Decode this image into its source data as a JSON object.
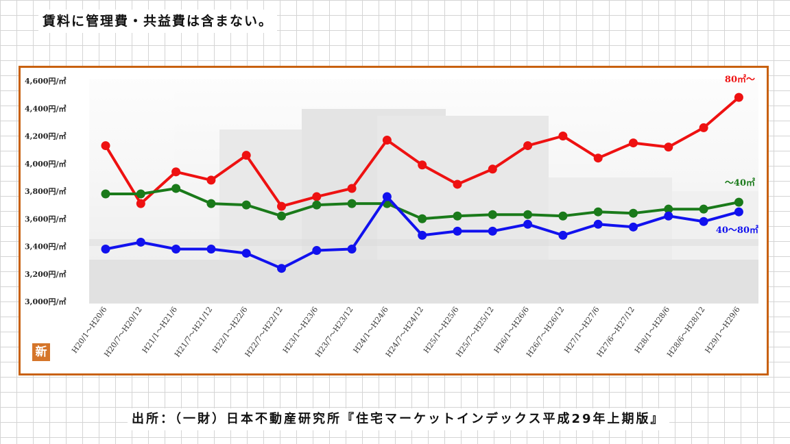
{
  "note": "賃料に管理費・共益費は含まない。",
  "source": "出所：（一財）日本不動産研究所『住宅マーケットインデックス平成29年上期版』",
  "badge": "新",
  "chart_data": {
    "type": "line",
    "categories": [
      "H20/1～H20/6",
      "H20/7～H20/12",
      "H21/1～H21/6",
      "H21/7～H21/12",
      "H22/1～H22/6",
      "H22/7～H22/12",
      "H23/1～H23/6",
      "H23/7～H23/12",
      "H24/1～H24/6",
      "H24/7～H24/12",
      "H25/1～H25/6",
      "H25/7～H25/12",
      "H26/1～H26/6",
      "H26/7～H26/12",
      "H27/1～H27/6",
      "H27/6～H27/12",
      "H28/1～H28/6",
      "H28/6～H28/12",
      "H29/1～H29/6"
    ],
    "ylim": [
      3000,
      4600
    ],
    "yticks": [
      3000,
      3200,
      3400,
      3600,
      3800,
      4000,
      4200,
      4400,
      4600
    ],
    "yunit": "円/㎡",
    "series": [
      {
        "name": "80㎡～",
        "color": "#ee1111",
        "values": [
          4130,
          3710,
          3940,
          3880,
          4060,
          3690,
          3760,
          3820,
          4170,
          3990,
          3850,
          3960,
          4130,
          4200,
          4040,
          4150,
          4120,
          4260,
          4480
        ]
      },
      {
        "name": "～40㎡",
        "color": "#1a7a1a",
        "values": [
          3780,
          3780,
          3820,
          3710,
          3700,
          3620,
          3700,
          3710,
          3710,
          3600,
          3620,
          3630,
          3630,
          3620,
          3650,
          3640,
          3670,
          3670,
          3720
        ]
      },
      {
        "name": "40～80㎡",
        "color": "#1111ee",
        "values": [
          3380,
          3430,
          3380,
          3380,
          3350,
          3240,
          3370,
          3380,
          3760,
          3480,
          3510,
          3510,
          3560,
          3480,
          3560,
          3540,
          3620,
          3580,
          3650
        ]
      }
    ]
  }
}
